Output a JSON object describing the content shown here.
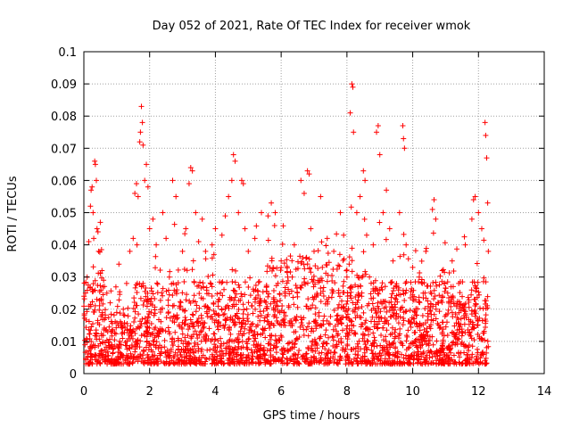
{
  "chart_data": {
    "type": "scatter",
    "title": "Day 052 of 2021, Rate Of TEC Index for receiver wmok",
    "xlabel": "GPS time / hours",
    "ylabel": "ROTI / TECUs",
    "xlim": [
      0,
      14
    ],
    "ylim": [
      0,
      0.1
    ],
    "x_ticks": [
      "0",
      "2",
      "4",
      "6",
      "8",
      "10",
      "12",
      "14"
    ],
    "y_ticks": [
      "0",
      "0.01",
      "0.02",
      "0.03",
      "0.04",
      "0.05",
      "0.06",
      "0.07",
      "0.08",
      "0.09",
      "0.1"
    ],
    "grid": true,
    "marker": "+",
    "color": "#ff0000",
    "series": [
      {
        "points": [
          [
            0.05,
            0.025
          ],
          [
            0.1,
            0.03
          ],
          [
            0.15,
            0.041
          ],
          [
            0.2,
            0.052
          ],
          [
            0.22,
            0.057
          ],
          [
            0.25,
            0.058
          ],
          [
            0.28,
            0.05
          ],
          [
            0.3,
            0.042
          ],
          [
            0.33,
            0.066
          ],
          [
            0.35,
            0.065
          ],
          [
            0.38,
            0.06
          ],
          [
            0.4,
            0.045
          ],
          [
            0.45,
            0.038
          ],
          [
            0.5,
            0.047
          ],
          [
            0.55,
            0.032
          ],
          [
            0.6,
            0.029
          ],
          [
            0.7,
            0.025
          ],
          [
            0.8,
            0.022
          ],
          [
            1.0,
            0.019
          ],
          [
            1.2,
            0.02
          ],
          [
            1.3,
            0.028
          ],
          [
            1.4,
            0.038
          ],
          [
            1.5,
            0.042
          ],
          [
            1.55,
            0.056
          ],
          [
            1.6,
            0.059
          ],
          [
            1.65,
            0.055
          ],
          [
            1.7,
            0.072
          ],
          [
            1.72,
            0.075
          ],
          [
            1.75,
            0.083
          ],
          [
            1.78,
            0.078
          ],
          [
            1.8,
            0.071
          ],
          [
            1.85,
            0.06
          ],
          [
            1.9,
            0.065
          ],
          [
            1.95,
            0.058
          ],
          [
            2.0,
            0.045
          ],
          [
            2.1,
            0.048
          ],
          [
            2.2,
            0.04
          ],
          [
            2.4,
            0.05
          ],
          [
            2.5,
            0.042
          ],
          [
            2.6,
            0.03
          ],
          [
            2.7,
            0.06
          ],
          [
            2.8,
            0.055
          ],
          [
            3.0,
            0.038
          ],
          [
            3.1,
            0.045
          ],
          [
            3.2,
            0.059
          ],
          [
            3.25,
            0.064
          ],
          [
            3.3,
            0.063
          ],
          [
            3.4,
            0.05
          ],
          [
            3.6,
            0.048
          ],
          [
            3.7,
            0.038
          ],
          [
            3.9,
            0.04
          ],
          [
            4.0,
            0.045
          ],
          [
            4.2,
            0.043
          ],
          [
            4.3,
            0.049
          ],
          [
            4.4,
            0.055
          ],
          [
            4.5,
            0.06
          ],
          [
            4.55,
            0.068
          ],
          [
            4.6,
            0.066
          ],
          [
            4.7,
            0.05
          ],
          [
            4.8,
            0.06
          ],
          [
            4.85,
            0.059
          ],
          [
            4.9,
            0.045
          ],
          [
            5.0,
            0.038
          ],
          [
            5.2,
            0.042
          ],
          [
            5.4,
            0.05
          ],
          [
            5.6,
            0.049
          ],
          [
            5.7,
            0.053
          ],
          [
            5.8,
            0.046
          ],
          [
            6.0,
            0.035
          ],
          [
            6.2,
            0.03
          ],
          [
            6.4,
            0.04
          ],
          [
            6.6,
            0.06
          ],
          [
            6.7,
            0.056
          ],
          [
            6.8,
            0.063
          ],
          [
            6.85,
            0.062
          ],
          [
            6.9,
            0.045
          ],
          [
            7.0,
            0.038
          ],
          [
            7.2,
            0.055
          ],
          [
            7.4,
            0.042
          ],
          [
            7.6,
            0.038
          ],
          [
            7.8,
            0.05
          ],
          [
            7.9,
            0.043
          ],
          [
            8.0,
            0.03
          ],
          [
            8.1,
            0.081
          ],
          [
            8.15,
            0.09
          ],
          [
            8.18,
            0.089
          ],
          [
            8.2,
            0.075
          ],
          [
            8.3,
            0.05
          ],
          [
            8.4,
            0.055
          ],
          [
            8.5,
            0.063
          ],
          [
            8.55,
            0.06
          ],
          [
            8.6,
            0.043
          ],
          [
            8.8,
            0.04
          ],
          [
            8.9,
            0.075
          ],
          [
            8.95,
            0.077
          ],
          [
            9.0,
            0.068
          ],
          [
            9.1,
            0.05
          ],
          [
            9.2,
            0.057
          ],
          [
            9.3,
            0.045
          ],
          [
            9.4,
            0.035
          ],
          [
            9.6,
            0.05
          ],
          [
            9.7,
            0.077
          ],
          [
            9.72,
            0.073
          ],
          [
            9.75,
            0.07
          ],
          [
            9.8,
            0.04
          ],
          [
            10.0,
            0.033
          ],
          [
            10.2,
            0.03
          ],
          [
            10.4,
            0.038
          ],
          [
            10.6,
            0.051
          ],
          [
            10.65,
            0.054
          ],
          [
            10.7,
            0.048
          ],
          [
            10.9,
            0.032
          ],
          [
            11.2,
            0.035
          ],
          [
            11.4,
            0.028
          ],
          [
            11.6,
            0.04
          ],
          [
            11.8,
            0.048
          ],
          [
            11.85,
            0.054
          ],
          [
            11.9,
            0.055
          ],
          [
            12.0,
            0.05
          ],
          [
            12.1,
            0.045
          ],
          [
            12.2,
            0.078
          ],
          [
            12.22,
            0.074
          ],
          [
            12.25,
            0.067
          ],
          [
            12.28,
            0.053
          ],
          [
            12.3,
            0.038
          ]
        ]
      }
    ]
  }
}
